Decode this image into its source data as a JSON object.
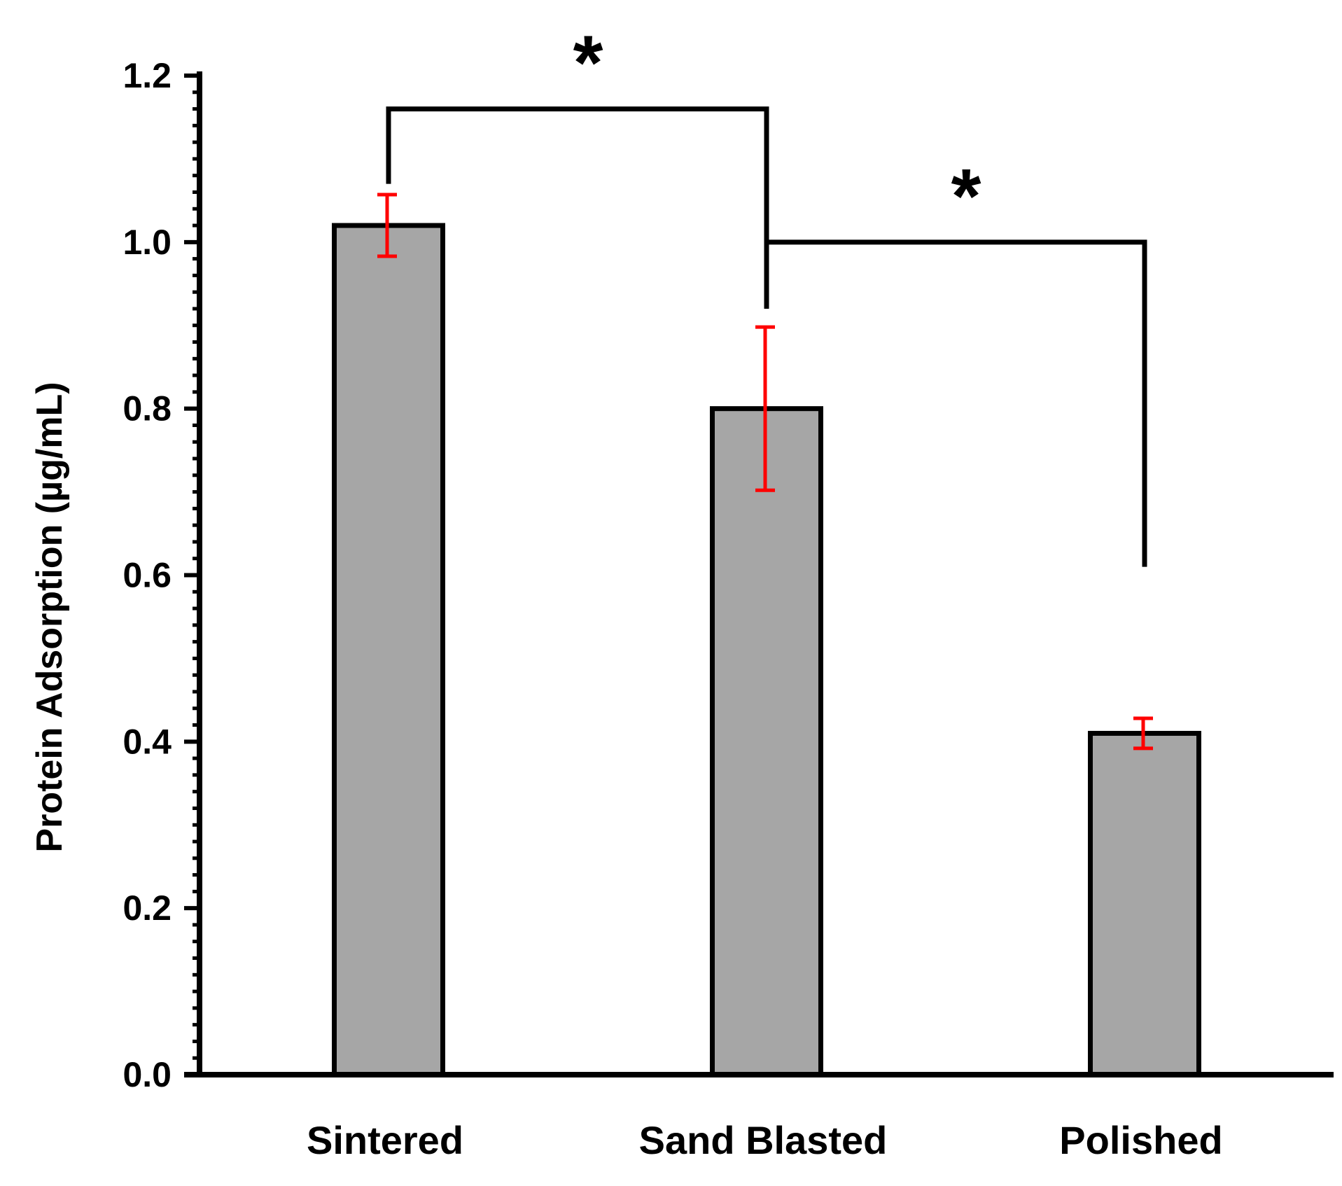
{
  "chart_data": {
    "type": "bar",
    "title": "",
    "xlabel": "",
    "ylabel": "Protein Adsorption (µg/mL)",
    "categories": [
      "Sintered",
      "Sand Blasted",
      "Polished"
    ],
    "values": [
      1.02,
      0.8,
      0.41
    ],
    "error_bars": [
      0.037,
      0.098,
      0.018
    ],
    "ylim": [
      0,
      1.2
    ],
    "yticks": [
      "0.0",
      "0.2",
      "0.4",
      "0.6",
      "0.8",
      "1.0",
      "1.2"
    ],
    "ytick_values": [
      0,
      0.2,
      0.4,
      0.6,
      0.8,
      1.0,
      1.2
    ],
    "grid": false,
    "legend": "none",
    "bar_color": "#a6a6a6",
    "bar_edge_color": "#000000",
    "error_bar_color": "#ff0000",
    "significance": [
      {
        "from": "Sintered",
        "to": "Sand Blasted",
        "label": "*"
      },
      {
        "from": "Sand Blasted",
        "to": "Polished",
        "label": "*"
      }
    ]
  }
}
